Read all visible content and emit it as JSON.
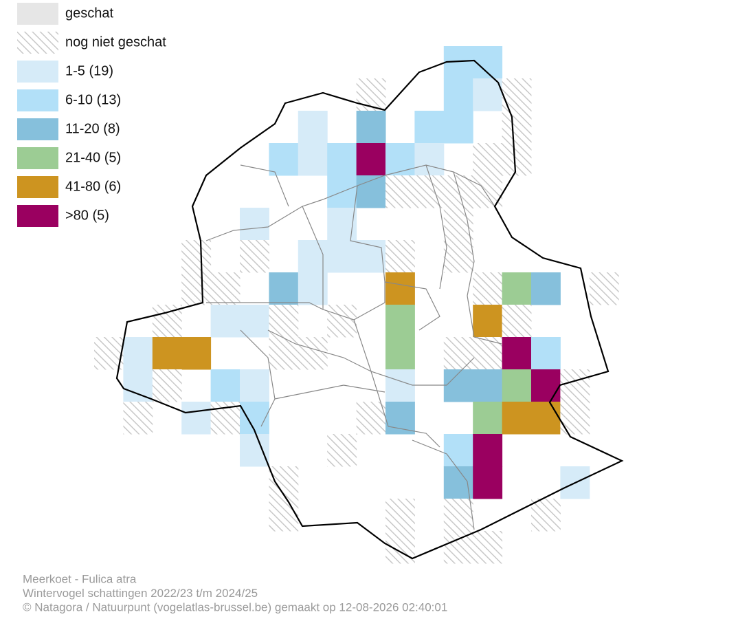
{
  "legend": [
    {
      "label": "geschat",
      "color": "#e6e6e6"
    },
    {
      "label": "nog niet geschat",
      "color": "#c8c8c8",
      "hatched": true
    },
    {
      "label": "1-5 (19)",
      "color": "#d6ebf8"
    },
    {
      "label": "6-10 (13)",
      "color": "#b2e0f8"
    },
    {
      "label": "11-20 (8)",
      "color": "#86c0dc"
    },
    {
      "label": "21-40 (5)",
      "color": "#9ccc94"
    },
    {
      "label": "41-80 (6)",
      "color": "#cd9420"
    },
    {
      "label": ">80 (5)",
      "color": "#9a0060"
    }
  ],
  "footer": [
    "Meerkoet - Fulica atra",
    "Wintervogel schattingen 2022/23 t/m 2024/25",
    "© Natagora / Natuurpunt (vogelatlas-brussel.be) gemaakt op 12-08-2026 02:40:01"
  ]
}
